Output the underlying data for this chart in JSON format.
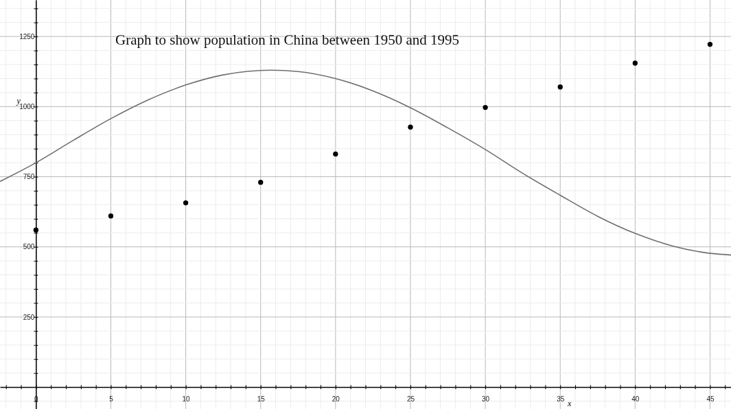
{
  "chart_data": {
    "type": "scatter",
    "title": "Graph to show population in China between 1950 and 1995",
    "xlabel": "x",
    "ylabel": "y",
    "xlim": [
      -2.4,
      46.4
    ],
    "ylim": [
      -78,
      1380
    ],
    "xticks": [
      {
        "value": -2,
        "label": null
      },
      {
        "value": -1,
        "label": null
      },
      0,
      {
        "value": 1,
        "label": null
      },
      {
        "value": 2,
        "label": null
      },
      {
        "value": 3,
        "label": null
      },
      {
        "value": 4,
        "label": null
      },
      5,
      {
        "value": 6,
        "label": null
      },
      {
        "value": 7,
        "label": null
      },
      {
        "value": 8,
        "label": null
      },
      {
        "value": 9,
        "label": null
      },
      10,
      {
        "value": 11,
        "label": null
      },
      {
        "value": 12,
        "label": null
      },
      {
        "value": 13,
        "label": null
      },
      {
        "value": 14,
        "label": null
      },
      15,
      {
        "value": 16,
        "label": null
      },
      {
        "value": 17,
        "label": null
      },
      {
        "value": 18,
        "label": null
      },
      {
        "value": 19,
        "label": null
      },
      20,
      {
        "value": 21,
        "label": null
      },
      {
        "value": 22,
        "label": null
      },
      {
        "value": 23,
        "label": null
      },
      {
        "value": 24,
        "label": null
      },
      25,
      {
        "value": 26,
        "label": null
      },
      {
        "value": 27,
        "label": null
      },
      {
        "value": 28,
        "label": null
      },
      {
        "value": 29,
        "label": null
      },
      30,
      {
        "value": 31,
        "label": null
      },
      {
        "value": 32,
        "label": null
      },
      {
        "value": 33,
        "label": null
      },
      {
        "value": 34,
        "label": null
      },
      35,
      {
        "value": 36,
        "label": null
      },
      {
        "value": 37,
        "label": null
      },
      {
        "value": 38,
        "label": null
      },
      {
        "value": 39,
        "label": null
      },
      40,
      {
        "value": 41,
        "label": null
      },
      {
        "value": 42,
        "label": null
      },
      {
        "value": 43,
        "label": null
      },
      {
        "value": 44,
        "label": null
      },
      45,
      {
        "value": 46,
        "label": null
      }
    ],
    "yticks": [
      {
        "value": -50,
        "label": null
      },
      {
        "value": 50,
        "label": null
      },
      {
        "value": 100,
        "label": null
      },
      {
        "value": 150,
        "label": null
      },
      {
        "value": 200,
        "label": null
      },
      250,
      {
        "value": 300,
        "label": null
      },
      {
        "value": 350,
        "label": null
      },
      {
        "value": 400,
        "label": null
      },
      {
        "value": 450,
        "label": null
      },
      500,
      {
        "value": 550,
        "label": null
      },
      {
        "value": 600,
        "label": null
      },
      {
        "value": 650,
        "label": null
      },
      {
        "value": 700,
        "label": null
      },
      750,
      {
        "value": 800,
        "label": null
      },
      {
        "value": 850,
        "label": null
      },
      {
        "value": 900,
        "label": null
      },
      {
        "value": 950,
        "label": null
      },
      1000,
      {
        "value": 1050,
        "label": null
      },
      {
        "value": 1100,
        "label": null
      },
      {
        "value": 1150,
        "label": null
      },
      {
        "value": 1200,
        "label": null
      },
      1250,
      {
        "value": 1300,
        "label": null
      },
      {
        "value": 1350,
        "label": null
      }
    ],
    "grid": true,
    "marker": "circle",
    "series": [
      {
        "color": "#000000",
        "x": [
          0,
          5,
          10,
          15,
          20,
          25,
          30,
          35,
          40,
          45
        ],
        "values": [
          560,
          610,
          657,
          730,
          831,
          927,
          997,
          1070,
          1155,
          1222
        ]
      },
      {
        "type": "line",
        "color": "#6e6e6e",
        "marker": "none",
        "line_style": "solid",
        "x": [
          -2.4,
          0,
          2.5,
          5,
          7.5,
          10,
          12.5,
          15.7,
          17.5,
          20,
          22.5,
          25,
          27.5,
          30,
          32.5,
          35,
          37.5,
          40,
          42.5,
          45,
          46.4
        ],
        "values": [
          733,
          800,
          880,
          957,
          1024,
          1077,
          1113,
          1130,
          1125,
          1100,
          1056,
          996,
          924,
          847,
          762,
          684,
          609,
          548,
          503,
          477,
          471
        ]
      }
    ]
  }
}
